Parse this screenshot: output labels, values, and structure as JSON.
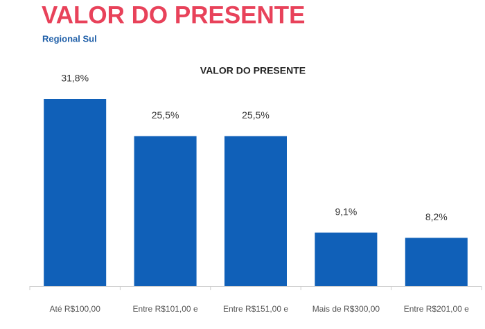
{
  "chart_data": {
    "type": "bar",
    "title": "VALOR DO PRESENTE",
    "subtitle": "Regional Sul",
    "chart_title": "VALOR DO PRESENTE",
    "categories": [
      "Até R$100,00",
      "Entre R$101,00 e",
      "Entre R$151,00 e",
      "Mais de R$300,00",
      "Entre R$201,00 e"
    ],
    "values": [
      31.8,
      25.5,
      25.5,
      9.1,
      8.2
    ],
    "value_labels": [
      "31,8%",
      "25,5%",
      "25,5%",
      "9,1%",
      "8,2%"
    ],
    "color": "#1060b8"
  }
}
